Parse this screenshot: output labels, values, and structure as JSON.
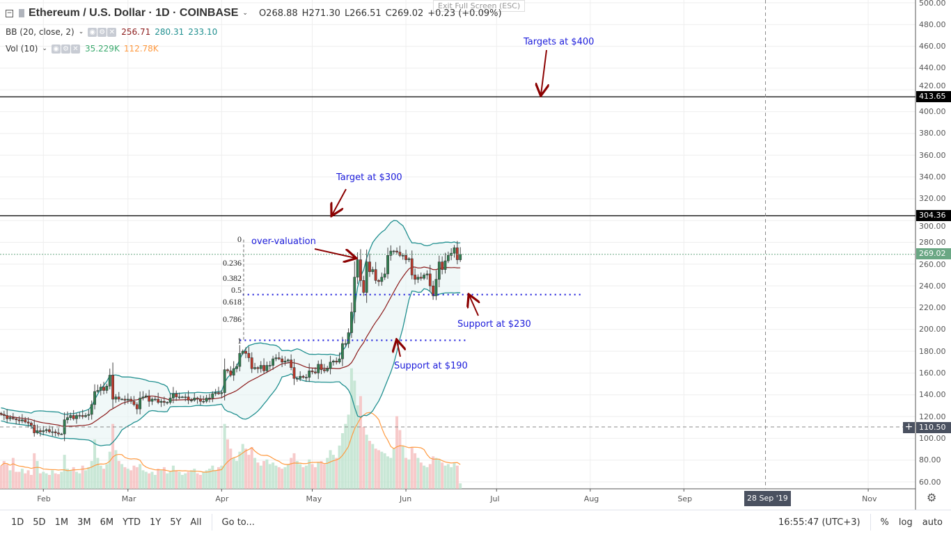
{
  "header": {
    "symbol_title": "Ethereum / U.S. Dollar · 1D · COINBASE",
    "open": "O268.88",
    "high": "H271.30",
    "low": "L266.51",
    "close": "C269.02",
    "change": "+0.23 (+0.09%)",
    "exit_fullscreen": "Exit Full Screen (ESC)"
  },
  "indicators": {
    "bb": {
      "label": "BB (20, close, 2)",
      "basis": "256.71",
      "upper": "280.31",
      "lower": "233.10",
      "colors": {
        "basis": "#8b1a1a",
        "band": "#1f8f8f",
        "fill": "#e6f3f3"
      }
    },
    "vol": {
      "label": "Vol (10)",
      "value": "35.229K",
      "ma": "112.78K",
      "colors": {
        "value": "#3cab6f",
        "ma": "#ff9a40"
      }
    }
  },
  "price_axis": {
    "ticks": [
      "500.00",
      "480.00",
      "460.00",
      "440.00",
      "420.00",
      "400.00",
      "380.00",
      "360.00",
      "340.00",
      "320.00",
      "300.00",
      "280.00",
      "260.00",
      "240.00",
      "220.00",
      "200.00",
      "180.00",
      "160.00",
      "140.00",
      "120.00",
      "100.00",
      "80.00",
      "60.00"
    ],
    "labels": {
      "line1": "413.65",
      "line2": "304.36",
      "last": "269.02",
      "crosshair": "110.50"
    }
  },
  "time_axis": {
    "months": [
      "Feb",
      "Mar",
      "Apr",
      "May",
      "Jun",
      "Jul",
      "Aug",
      "Sep",
      "Nov"
    ],
    "crosshair": "28 Sep '19"
  },
  "toolbar": {
    "ranges": [
      "1D",
      "5D",
      "1M",
      "3M",
      "6M",
      "YTD",
      "1Y",
      "5Y",
      "All"
    ],
    "goto": "Go to...",
    "clock": "16:55:47 (UTC+3)",
    "percent": "%",
    "log": "log",
    "auto": "auto"
  },
  "annotations": {
    "t400": "Targets at $400",
    "t300": "Target at $300",
    "over": "over-valuation",
    "s230": "Support at $230",
    "s190": "Support at $190"
  },
  "fib": {
    "levels": [
      "0",
      "0.236",
      "0.382",
      "0.5",
      "0.618",
      "0.786",
      "1"
    ],
    "high": 282.5,
    "low": 189
  },
  "chart_data": {
    "type": "candlestick",
    "title": "Ethereum / U.S. Dollar · 1D · COINBASE",
    "ylim": [
      60,
      500
    ],
    "colors": {
      "up": "#2f8050",
      "down": "#c0392b",
      "outline": "#333333"
    },
    "hlines": [
      {
        "price": 413.65,
        "style": "solid"
      },
      {
        "price": 304.36,
        "style": "solid"
      },
      {
        "price": 232,
        "style": "dotted",
        "from": "2019-04-08",
        "to": "2019-07-29"
      },
      {
        "price": 190,
        "style": "dotted",
        "from": "2019-04-07",
        "to": "2019-06-21"
      }
    ],
    "crosshair": {
      "price": 110.5,
      "date": "2019-09-28"
    },
    "months": [
      "2019-02-01",
      "2019-03-01",
      "2019-04-01",
      "2019-05-01",
      "2019-06-01",
      "2019-07-01",
      "2019-08-01",
      "2019-09-01",
      "2019-11-01"
    ],
    "first": "2019-01-18",
    "close": [
      122,
      121,
      118,
      119,
      118,
      117,
      116,
      117,
      115,
      114,
      112,
      105,
      107,
      106,
      107,
      108,
      106,
      106,
      105,
      104,
      104,
      117,
      119,
      121,
      118,
      121,
      121,
      120,
      121,
      122,
      131,
      143,
      144,
      147,
      144,
      148,
      158,
      136,
      138,
      136,
      136,
      135,
      136,
      134,
      131,
      127,
      137,
      138,
      139,
      134,
      136,
      136,
      133,
      134,
      133,
      133,
      137,
      141,
      138,
      138,
      138,
      138,
      135,
      135,
      137,
      136,
      134,
      134,
      137,
      137,
      141,
      142,
      141,
      142,
      163,
      162,
      158,
      164,
      166,
      178,
      180,
      178,
      174,
      164,
      165,
      164,
      167,
      162,
      167,
      167,
      173,
      174,
      173,
      170,
      171,
      172,
      165,
      155,
      155,
      157,
      156,
      156,
      162,
      161,
      160,
      168,
      163,
      162,
      164,
      170,
      171,
      170,
      173,
      187,
      187,
      197,
      216,
      248,
      264,
      245,
      234,
      262,
      253,
      255,
      245,
      244,
      248,
      251,
      268,
      272,
      272,
      271,
      268,
      268,
      264,
      265,
      250,
      246,
      248,
      247,
      250,
      251,
      240,
      231,
      246,
      262,
      255,
      263,
      268,
      270,
      275,
      264,
      269.02
    ],
    "volume_k": [
      150,
      180,
      160,
      120,
      200,
      110,
      110,
      130,
      100,
      120,
      90,
      230,
      180,
      100,
      110,
      100,
      90,
      120,
      100,
      95,
      110,
      220,
      130,
      120,
      140,
      110,
      100,
      150,
      120,
      140,
      180,
      320,
      200,
      150,
      130,
      160,
      240,
      420,
      250,
      180,
      160,
      140,
      130,
      120,
      150,
      140,
      160,
      120,
      110,
      100,
      110,
      90,
      130,
      120,
      140,
      100,
      110,
      150,
      120,
      110,
      90,
      100,
      110,
      120,
      130,
      100,
      90,
      110,
      120,
      130,
      150,
      120,
      140,
      150,
      420,
      320,
      260,
      200,
      180,
      240,
      290,
      260,
      220,
      270,
      200,
      170,
      150,
      180,
      190,
      160,
      170,
      150,
      140,
      130,
      140,
      160,
      200,
      230,
      180,
      160,
      140,
      150,
      190,
      160,
      140,
      170,
      180,
      160,
      200,
      250,
      220,
      200,
      280,
      360,
      420,
      480,
      780,
      700,
      540,
      600,
      400,
      350,
      310,
      290,
      260,
      250,
      240,
      230,
      210,
      200,
      260,
      470,
      380,
      280,
      200,
      190,
      270,
      230,
      200,
      170,
      150,
      140,
      160,
      210,
      200,
      190,
      170,
      150,
      160,
      140,
      170,
      150,
      35.229
    ]
  }
}
